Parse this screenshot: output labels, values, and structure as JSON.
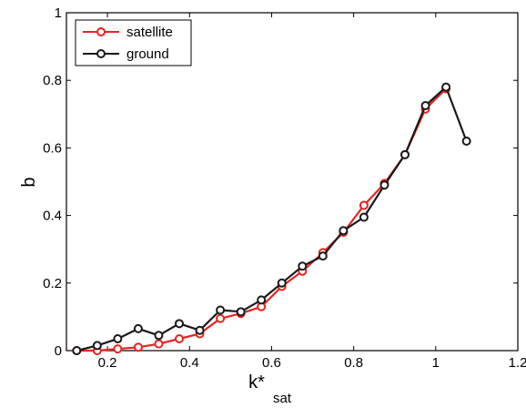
{
  "chart_data": {
    "type": "line",
    "title": "",
    "xlabel": "k*",
    "xlabel_subscript": "sat",
    "ylabel": "b",
    "xlim": [
      0.1,
      1.2
    ],
    "ylim": [
      0,
      1
    ],
    "xticks": [
      0.2,
      0.4,
      0.6,
      0.8,
      1,
      1.2
    ],
    "xtick_labels": [
      "0.2",
      "0.4",
      "0.6",
      "0.8",
      "1",
      "1.2"
    ],
    "yticks": [
      0,
      0.2,
      0.4,
      0.6,
      0.8,
      1
    ],
    "ytick_labels": [
      "0",
      "0.2",
      "0.4",
      "0.6",
      "0.8",
      "1"
    ],
    "grid": false,
    "legend_position": "top-left",
    "series": [
      {
        "name": "satellite",
        "color": "#e8231f",
        "marker": "circle",
        "x": [
          0.125,
          0.175,
          0.225,
          0.275,
          0.325,
          0.375,
          0.425,
          0.475,
          0.525,
          0.575,
          0.625,
          0.675,
          0.725,
          0.775,
          0.825,
          0.875,
          0.925,
          0.975,
          1.025
        ],
        "y": [
          0.0,
          0.0,
          0.005,
          0.01,
          0.02,
          0.035,
          0.05,
          0.095,
          0.11,
          0.13,
          0.19,
          0.235,
          0.29,
          0.35,
          0.43,
          0.495,
          0.58,
          0.715,
          0.775
        ]
      },
      {
        "name": "ground",
        "color": "#1a1a1a",
        "marker": "circle",
        "x": [
          0.125,
          0.175,
          0.225,
          0.275,
          0.325,
          0.375,
          0.425,
          0.475,
          0.525,
          0.575,
          0.625,
          0.675,
          0.725,
          0.775,
          0.825,
          0.875,
          0.925,
          0.975,
          1.025,
          1.075
        ],
        "y": [
          0.0,
          0.015,
          0.035,
          0.065,
          0.045,
          0.08,
          0.06,
          0.12,
          0.115,
          0.15,
          0.2,
          0.25,
          0.28,
          0.355,
          0.395,
          0.49,
          0.58,
          0.725,
          0.78,
          0.62
        ]
      }
    ]
  }
}
